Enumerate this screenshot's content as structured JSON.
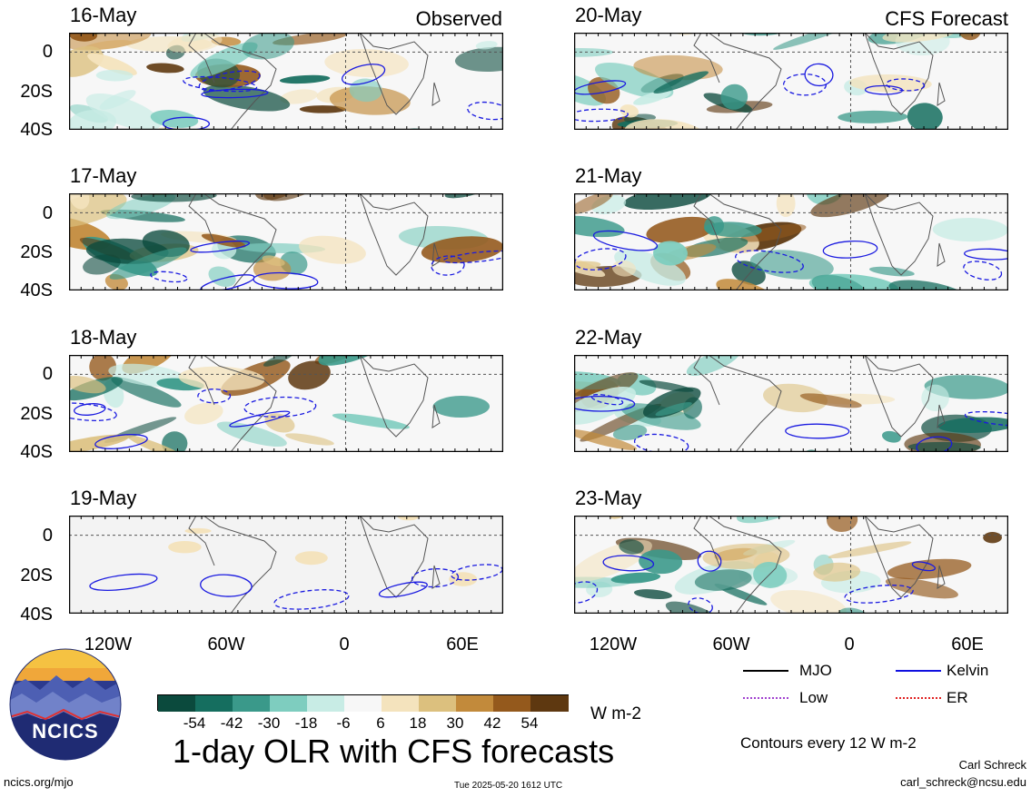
{
  "panels_observed": [
    {
      "date": "16-May",
      "tag": "Observed"
    },
    {
      "date": "17-May",
      "tag": ""
    },
    {
      "date": "18-May",
      "tag": ""
    },
    {
      "date": "19-May",
      "tag": ""
    }
  ],
  "panels_forecast": [
    {
      "date": "20-May",
      "tag": "CFS Forecast"
    },
    {
      "date": "21-May",
      "tag": ""
    },
    {
      "date": "22-May",
      "tag": ""
    },
    {
      "date": "23-May",
      "tag": ""
    }
  ],
  "lat_ticks": [
    "0",
    "20S",
    "40S"
  ],
  "lon_ticks": [
    "120W",
    "60W",
    "0",
    "60E"
  ],
  "colorbar": {
    "unit": "W m-2",
    "labels": [
      "-54",
      "-42",
      "-30",
      "-18",
      "-6",
      "6",
      "18",
      "30",
      "42",
      "54"
    ],
    "colors": [
      "#0b4a3d",
      "#156e5f",
      "#3a998a",
      "#7ecdbf",
      "#c8ece5",
      "#f7f7f7",
      "#f4e3bd",
      "#dcc07e",
      "#c28a3b",
      "#94591c",
      "#5e3810"
    ]
  },
  "legend": {
    "mjo": "MJO",
    "kelvin": "Kelvin",
    "low": "Low",
    "er": "ER",
    "contour_note": "Contours every 12 W m-2"
  },
  "title": "1-day OLR with CFS forecasts",
  "logo_text": "NCICS",
  "footer": {
    "left": "ncics.org/mjo",
    "center": "Tue 2025-05-20 1612 UTC",
    "author": "Carl Schreck",
    "email": "carl_schreck@ncsu.edu"
  }
}
